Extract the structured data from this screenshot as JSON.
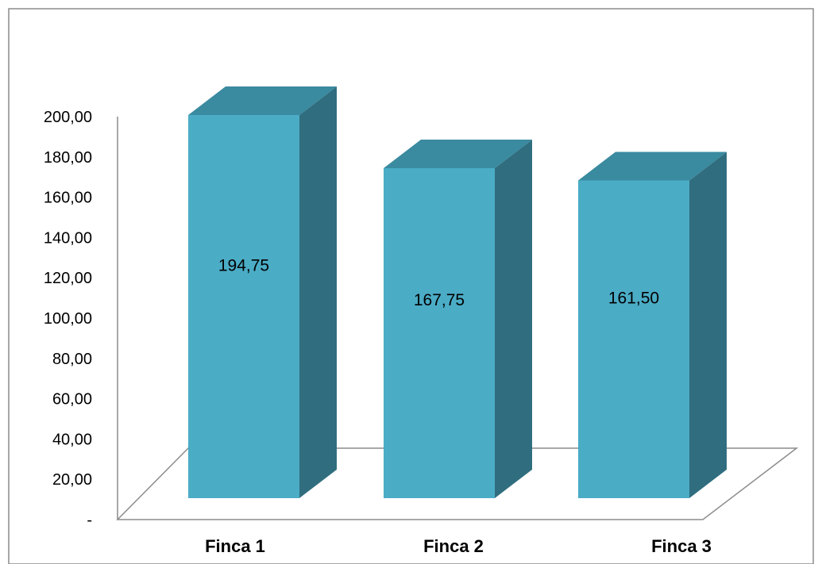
{
  "chart_data": {
    "type": "bar",
    "categories": [
      "Finca 1",
      "Finca 2",
      "Finca 3"
    ],
    "values": [
      194.75,
      167.75,
      161.5
    ],
    "data_labels": [
      "194,75",
      "167,75",
      "161,50"
    ],
    "y_ticks": [
      "-",
      "20,00",
      "40,00",
      "60,00",
      "80,00",
      "100,00",
      "120,00",
      "140,00",
      "160,00",
      "180,00",
      "200,00"
    ],
    "ylim": [
      0,
      200
    ],
    "grid": false,
    "legend": "none",
    "style": "3d-column",
    "colors": {
      "front": "#4bacc6",
      "top": "#3a8aa0",
      "side": "#306e7f",
      "frame": "#8c8c8c",
      "axis": "#8c8c8c"
    }
  }
}
